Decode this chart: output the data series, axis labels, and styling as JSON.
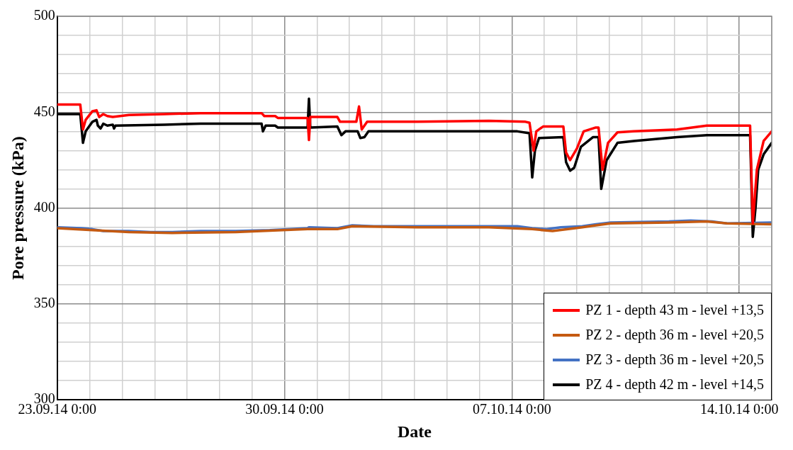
{
  "chart_data": {
    "type": "line",
    "xlabel": "Date",
    "ylabel": "Pore pressure (kPa)",
    "xlim": [
      "--09-23T00:00",
      "--10-15T00:00"
    ],
    "xticks": [
      {
        "value": "--09-23T00:00",
        "label": "23.09.14 0:00"
      },
      {
        "value": "--09-24T00:00",
        "label": null
      },
      {
        "value": "--09-25T00:00",
        "label": null
      },
      {
        "value": "--09-26T00:00",
        "label": null
      },
      {
        "value": "--09-27T00:00",
        "label": null
      },
      {
        "value": "--09-28T00:00",
        "label": null
      },
      {
        "value": "--09-29T00:00",
        "label": null
      },
      {
        "value": "--09-30T00:00",
        "label": "30.09.14 0:00"
      },
      {
        "value": "--10-01T00:00",
        "label": null
      },
      {
        "value": "--10-02T00:00",
        "label": null
      },
      {
        "value": "--10-03T00:00",
        "label": null
      },
      {
        "value": "--10-04T00:00",
        "label": null
      },
      {
        "value": "--10-05T00:00",
        "label": null
      },
      {
        "value": "--10-06T00:00",
        "label": null
      },
      {
        "value": "--10-07T00:00",
        "label": "07.10.14 0:00"
      },
      {
        "value": "--10-08T00:00",
        "label": null
      },
      {
        "value": "--10-09T00:00",
        "label": null
      },
      {
        "value": "--10-10T00:00",
        "label": null
      },
      {
        "value": "--10-11T00:00",
        "label": null
      },
      {
        "value": "--10-12T00:00",
        "label": null
      },
      {
        "value": "--10-13T00:00",
        "label": null
      },
      {
        "value": "--10-14T00:00",
        "label": "14.10.14 0:00"
      },
      {
        "value": "--10-15T00:00",
        "label": null
      }
    ],
    "ylim": [
      300,
      500
    ],
    "yticks": [
      300,
      {
        "value": 310,
        "label": null
      },
      {
        "value": 320,
        "label": null
      },
      {
        "value": 330,
        "label": null
      },
      {
        "value": 340,
        "label": null
      },
      350,
      {
        "value": 360,
        "label": null
      },
      {
        "value": 370,
        "label": null
      },
      {
        "value": 380,
        "label": null
      },
      {
        "value": 390,
        "label": null
      },
      400,
      {
        "value": 410,
        "label": null
      },
      {
        "value": 420,
        "label": null
      },
      {
        "value": 430,
        "label": null
      },
      {
        "value": 440,
        "label": null
      },
      450,
      {
        "value": 460,
        "label": null
      },
      {
        "value": 470,
        "label": null
      },
      {
        "value": 480,
        "label": null
      },
      {
        "value": 490,
        "label": null
      },
      500
    ],
    "grid": true,
    "legend": "bottom right",
    "marker": "none",
    "line_style": "solid",
    "series": [
      {
        "name": "PZ 1 - depth 43 m - level +13,5",
        "color": "#ff0000",
        "x": [
          "--09-23T00:00",
          "--09-23T17:00",
          "--09-23T19:00",
          "--09-23T21:00",
          "--09-24T02:00",
          "--09-24T05:00",
          "--09-24T07:00",
          "--09-24T10:00",
          "--09-24T13:00",
          "--09-24T17:00",
          "--09-25T05:00",
          "--09-26T07:00",
          "--09-27T10:00",
          "--09-29T07:00",
          "--09-29T09:00",
          "--09-29T17:00",
          "--09-29T19:00",
          "--09-30T13:00",
          "--09-30T17:00",
          "--09-30T18:00",
          "--09-30T19:00",
          "--10-01T15:00",
          "--10-01T17:00",
          "--10-02T05:00",
          "--10-02T07:00",
          "--10-02T09:00",
          "--10-02T13:00",
          "--10-04T02:00",
          "--10-06T07:00",
          "--10-07T10:00",
          "--10-07T13:00",
          "--10-07T16:00",
          "--10-07T18:00",
          "--10-07T23:00",
          "--10-08T14:00",
          "--10-08T16:00",
          "--10-08T19:00",
          "--10-09T00:00",
          "--10-09T05:00",
          "--10-09T14:00",
          "--10-09T16:00",
          "--10-09T19:00",
          "--10-09T23:00",
          "--10-10T06:00",
          "--10-10T18:00",
          "--10-12T02:00",
          "--10-13T00:00",
          "--10-14T08:00",
          "--10-14T10:00",
          "--10-14T13:00",
          "--10-14T18:00",
          "--10-15T00:00"
        ],
        "values": [
          454,
          454,
          441,
          446,
          450.5,
          451,
          447.5,
          449,
          448,
          447.5,
          448.5,
          449,
          449.5,
          449.5,
          448,
          448,
          447,
          447,
          447,
          435.5,
          447.5,
          447.5,
          445,
          445,
          453,
          441,
          445,
          445,
          445.5,
          445,
          444.5,
          430,
          440,
          442.5,
          442.5,
          429,
          425,
          431,
          440,
          442,
          442,
          420,
          434,
          439.5,
          440,
          441,
          443,
          443,
          392,
          420,
          435,
          440
        ]
      },
      {
        "name": "PZ 2 - depth 36 m - level +20,5",
        "color": "#c55a11",
        "x": [
          "--09-23T00:00",
          "--09-24T02:00",
          "--09-25T05:00",
          "--09-26T13:00",
          "--09-28T12:00",
          "--09-30T17:00",
          "--10-01T15:00",
          "--10-02T02:00",
          "--10-04T02:00",
          "--10-06T07:00",
          "--10-07T15:00",
          "--10-08T06:00",
          "--10-09T04:00",
          "--10-09T14:00",
          "--10-10T01:00",
          "--10-11T20:00",
          "--10-13T00:00",
          "--10-13T15:00",
          "--10-15T00:00"
        ],
        "values": [
          389.5,
          388.5,
          387.5,
          387,
          387.5,
          389,
          389,
          390.5,
          390,
          390,
          389,
          388,
          390,
          391,
          392,
          392.5,
          393,
          392,
          391.5
        ]
      },
      {
        "name": "PZ 3 - depth 36 m - level +20,5",
        "color": "#4472c4",
        "x": [
          "--09-23T00:00",
          "--09-23T18:00",
          "--09-24T02:00",
          "--09-24T10:00",
          "--09-25T05:00",
          "--09-25T21:00",
          "--09-26T13:00",
          "--09-27T10:00",
          "--09-28T12:00",
          "--09-29T13:00",
          "--09-30T17:00",
          "--09-30T18:00",
          "--10-01T15:00",
          "--10-02T02:00",
          "--10-02T18:00",
          "--10-04T02:00",
          "--10-06T07:00",
          "--10-07T04:00",
          "--10-07T15:00",
          "--10-08T01:00",
          "--10-08T12:00",
          "--10-09T04:00",
          "--10-09T14:00",
          "--10-10T01:00",
          "--10-11T20:00",
          "--10-12T12:00",
          "--10-13T04:00",
          "--10-13T15:00",
          "--10-15T00:00"
        ],
        "values": [
          390,
          389.5,
          389,
          388,
          388,
          387.5,
          387.5,
          388,
          388,
          388.5,
          389.5,
          390,
          389.5,
          391,
          390.5,
          390.5,
          390.5,
          390.5,
          389.5,
          389,
          390,
          390.5,
          391.5,
          392.5,
          393,
          393.5,
          393,
          392,
          392.5
        ]
      },
      {
        "name": "PZ 4 - depth 42 m - level +14,5",
        "color": "#000000",
        "x": [
          "--09-23T00:00",
          "--09-23T17:00",
          "--09-23T19:00",
          "--09-23T21:00",
          "--09-24T02:00",
          "--09-24T05:00",
          "--09-24T06:00",
          "--09-24T08:00",
          "--09-24T10:00",
          "--09-24T13:00",
          "--09-24T17:00",
          "--09-24T18:00",
          "--09-24T19:00",
          "--09-26T07:00",
          "--09-27T10:00",
          "--09-29T07:00",
          "--09-29T08:00",
          "--09-29T10:00",
          "--09-29T17:00",
          "--09-29T19:00",
          "--09-30T17:00",
          "--09-30T18:00",
          "--09-30T19:00",
          "--10-01T15:00",
          "--10-01T18:00",
          "--10-01T21:00",
          "--10-02T06:00",
          "--10-02T08:00",
          "--10-02T11:00",
          "--10-02T14:00",
          "--10-04T02:00",
          "--10-06T07:00",
          "--10-07T04:00",
          "--10-07T13:00",
          "--10-07T15:00",
          "--10-07T17:00",
          "--10-07T20:00",
          "--10-08T14:00",
          "--10-08T16:00",
          "--10-08T19:00",
          "--10-08T22:00",
          "--10-09T03:00",
          "--10-09T12:00",
          "--10-09T16:00",
          "--10-09T18:00",
          "--10-09T22:00",
          "--10-10T06:00",
          "--10-10T18:00",
          "--10-12T02:00",
          "--10-13T00:00",
          "--10-14T08:00",
          "--10-14T10:00",
          "--10-14T12:00",
          "--10-14T14:00",
          "--10-14T18:00",
          "--10-15T00:00"
        ],
        "values": [
          449,
          449,
          434,
          440,
          445,
          446,
          443,
          441.5,
          444,
          443,
          443.5,
          441.5,
          443,
          443.5,
          444,
          444,
          440,
          443,
          443,
          442,
          442,
          457,
          442,
          442.5,
          438,
          440,
          440,
          436.5,
          437,
          440,
          440,
          440,
          440,
          439,
          416,
          430,
          436.5,
          437,
          424,
          419.5,
          421,
          432,
          437,
          437,
          410,
          425,
          434,
          435,
          437,
          438,
          438,
          385,
          400,
          420,
          428,
          434
        ]
      }
    ]
  }
}
